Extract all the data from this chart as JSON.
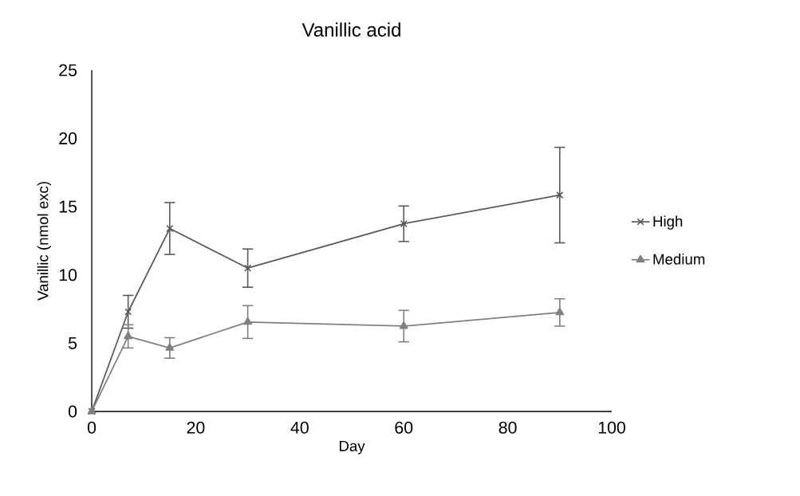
{
  "chart_data": {
    "type": "line",
    "title": "Vanillic acid",
    "xlabel": "Day",
    "ylabel": "Vanillic (nmol exc)",
    "x": [
      0,
      7,
      15,
      30,
      60,
      90
    ],
    "series": [
      {
        "name": "High",
        "color": "#595959",
        "marker": "cross",
        "values": [
          0,
          7.3,
          13.4,
          10.5,
          13.75,
          15.85
        ],
        "errors": [
          null,
          1.2,
          1.9,
          1.4,
          1.3,
          3.5
        ]
      },
      {
        "name": "Medium",
        "color": "#808080",
        "marker": "triangle",
        "values": [
          0,
          5.5,
          4.65,
          6.55,
          6.25,
          7.25
        ],
        "errors": [
          null,
          0.85,
          0.75,
          1.2,
          1.15,
          1.0
        ]
      }
    ],
    "xlim": [
      0,
      100
    ],
    "xticks": [
      0,
      20,
      40,
      60,
      80,
      100
    ],
    "ylim": [
      0,
      25
    ],
    "yticks": [
      0,
      5,
      10,
      15,
      20,
      25
    ],
    "grid": false,
    "legend": "right",
    "line_style": "solid"
  }
}
